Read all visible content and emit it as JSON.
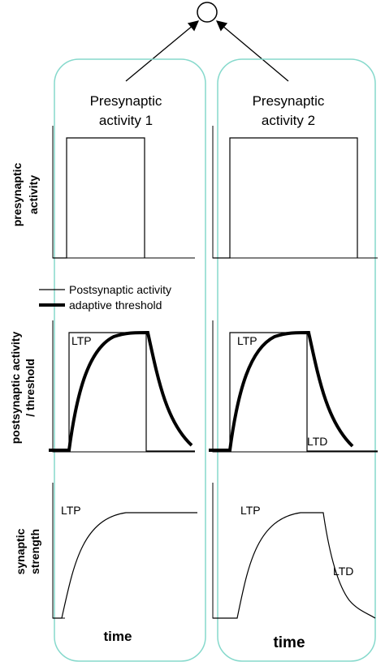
{
  "columns": [
    {
      "title": [
        "Presynaptic",
        "activity 1"
      ],
      "threshold_labels": [
        "LTP"
      ],
      "strength_labels": [
        "LTP"
      ],
      "x_label": "time"
    },
    {
      "title": [
        "Presynaptic",
        "activity 2"
      ],
      "threshold_labels": [
        "LTP",
        "LTD"
      ],
      "strength_labels": [
        "LTP",
        "LTD"
      ],
      "x_label": "time"
    }
  ],
  "rows": [
    {
      "label": [
        "presynaptic",
        "activity"
      ]
    },
    {
      "label": [
        "postsynaptic activity",
        "/ threshold"
      ]
    },
    {
      "label": [
        "synaptic",
        "strength"
      ]
    }
  ],
  "legend": [
    "Postsynaptic activity",
    "adaptive threshold"
  ]
}
